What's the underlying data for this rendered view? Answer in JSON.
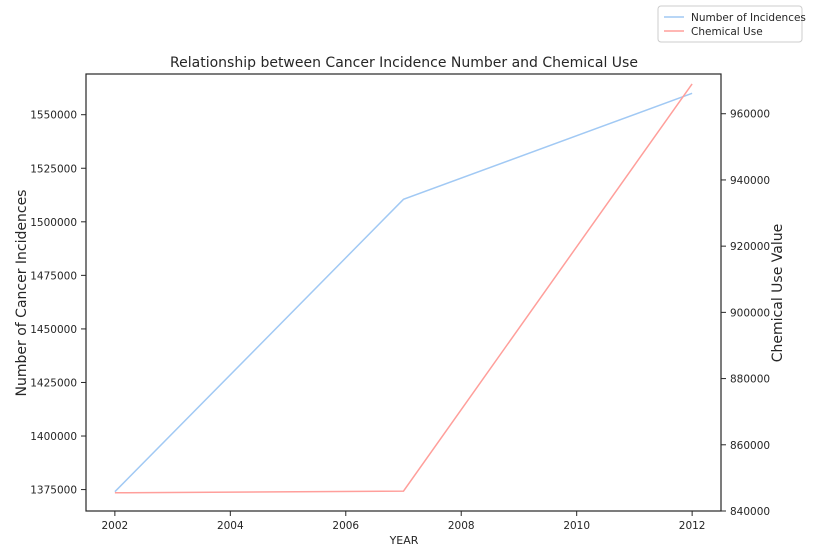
{
  "chart_data": {
    "type": "line",
    "title": "Relationship between Cancer Incidence Number and Chemical Use",
    "xlabel": "YEAR",
    "ylabel_left": "Number of Cancer Incidences",
    "ylabel_right": "Chemical Use Value",
    "x": [
      2002,
      2007,
      2012
    ],
    "xlim": [
      2001.5,
      2012.5
    ],
    "xticks": [
      "2002",
      "2004",
      "2006",
      "2008",
      "2010",
      "2012"
    ],
    "ylim_left": [
      1365000,
      1569000
    ],
    "ylim_right": [
      840000,
      972000
    ],
    "yticks_left": [
      "1375000",
      "1400000",
      "1425000",
      "1450000",
      "1475000",
      "1500000",
      "1525000",
      "1550000"
    ],
    "yticks_right": [
      "840000",
      "860000",
      "880000",
      "900000",
      "920000",
      "940000",
      "960000"
    ],
    "series": [
      {
        "name": "Number of Incidences",
        "axis": "left",
        "color": "#a1c9f4",
        "values": [
          1374000,
          1510500,
          1560000
        ]
      },
      {
        "name": "Chemical Use",
        "axis": "right",
        "color": "#ff9f9b",
        "values": [
          845500,
          846000,
          969000
        ]
      }
    ],
    "legend_position": "top-right",
    "grid": false
  }
}
